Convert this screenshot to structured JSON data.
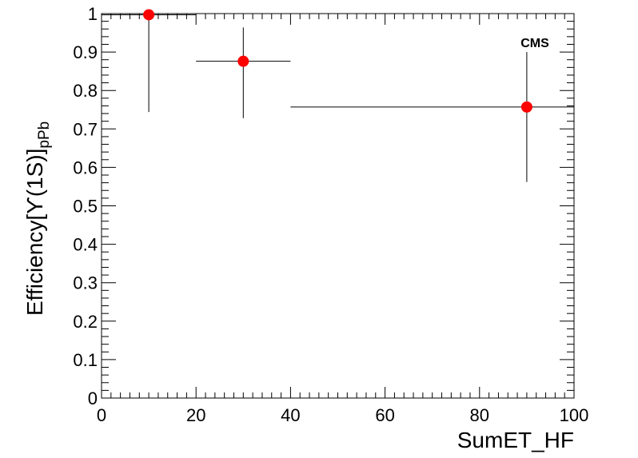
{
  "chart_data": {
    "type": "scatter",
    "xlabel": "SumET_HF",
    "ylabel": {
      "main": "Efficiency[",
      "symbol": "ϒ",
      "tail": "(1S)]",
      "subscript": "pPb"
    },
    "annotation": "CMS",
    "xlim": [
      0,
      100
    ],
    "ylim": [
      0,
      1
    ],
    "xticks": [
      0,
      20,
      40,
      60,
      80,
      100
    ],
    "yticks": [
      0,
      0.1,
      0.2,
      0.3,
      0.4,
      0.5,
      0.6,
      0.7,
      0.8,
      0.9,
      1
    ],
    "xtick_labels": [
      "0",
      "20",
      "40",
      "60",
      "80",
      "100"
    ],
    "ytick_labels": [
      "0",
      "0.1",
      "0.2",
      "0.3",
      "0.4",
      "0.5",
      "0.6",
      "0.7",
      "0.8",
      "0.9",
      "1"
    ],
    "grid": false,
    "marker_color": "#ff0000",
    "points": [
      {
        "x": 10,
        "y": 0.997,
        "x_err_low": 10,
        "x_err_high": 10,
        "y_err_low": 0.253,
        "y_err_high": 0.003
      },
      {
        "x": 30,
        "y": 0.876,
        "x_err_low": 10,
        "x_err_high": 10,
        "y_err_low": 0.148,
        "y_err_high": 0.088
      },
      {
        "x": 90,
        "y": 0.757,
        "x_err_low": 50,
        "x_err_high": 10,
        "y_err_low": 0.195,
        "y_err_high": 0.143
      }
    ]
  }
}
